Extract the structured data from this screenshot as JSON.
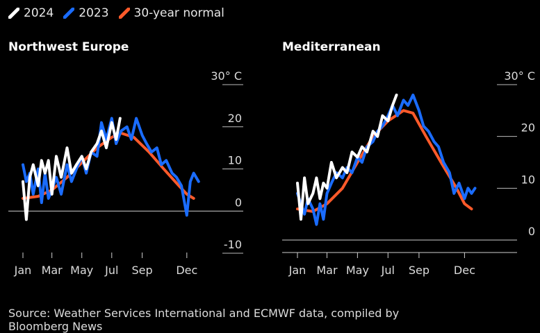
{
  "legend": [
    {
      "label": "2024",
      "color": "#ffffff",
      "icon": "white-slash-icon"
    },
    {
      "label": "2023",
      "color": "#1a6cff",
      "icon": "blue-slash-icon"
    },
    {
      "label": "30-year normal",
      "color": "#ff5a2a",
      "icon": "orange-slash-icon"
    }
  ],
  "chart_data": [
    {
      "type": "line",
      "title": "Northwest Europe",
      "xlabel": "",
      "ylabel": "",
      "x_ticks": [
        "Jan",
        "Mar",
        "May",
        "Jul",
        "Sep",
        "Dec"
      ],
      "y_ticks": [
        "30° C",
        "20",
        "10",
        "0",
        "-10"
      ],
      "ylim": [
        -10,
        30
      ],
      "xlim": [
        "Jan 1",
        "Dec 31"
      ],
      "grid": "horizontal",
      "series": [
        {
          "name": "30-year normal",
          "color": "#ff5a2a",
          "x": [
            "Jan 1",
            "Feb 1",
            "Mar 1",
            "Apr 1",
            "May 1",
            "Jun 1",
            "Jul 1",
            "Jul 20",
            "Aug 15",
            "Sep 15",
            "Oct 15",
            "Nov 15",
            "Dec 1",
            "Dec 15"
          ],
          "values": [
            3,
            3.5,
            5,
            8,
            11.5,
            15,
            17.5,
            18.5,
            17.5,
            14,
            10,
            6,
            4,
            3
          ]
        },
        {
          "name": "2023",
          "color": "#1a6cff",
          "x": [
            "Jan 1",
            "Jan 8",
            "Jan 15",
            "Jan 22",
            "Feb 1",
            "Feb 8",
            "Feb 15",
            "Feb 22",
            "Mar 1",
            "Mar 10",
            "Mar 20",
            "Apr 1",
            "Apr 10",
            "Apr 20",
            "May 1",
            "May 10",
            "May 20",
            "Jun 1",
            "Jun 10",
            "Jun 20",
            "Jul 1",
            "Jul 10",
            "Jul 20",
            "Aug 1",
            "Aug 10",
            "Aug 20",
            "Sep 1",
            "Sep 10",
            "Sep 20",
            "Oct 1",
            "Oct 10",
            "Oct 20",
            "Nov 1",
            "Nov 10",
            "Nov 20",
            "Dec 1",
            "Dec 8",
            "Dec 15",
            "Dec 25"
          ],
          "values": [
            11,
            7,
            9,
            4,
            10,
            2,
            9,
            3,
            5,
            8,
            4,
            11,
            7,
            10,
            13,
            9,
            14,
            13,
            21,
            17,
            22,
            16,
            19,
            20,
            17,
            22,
            18,
            16,
            14,
            15,
            11,
            12,
            9,
            8,
            6,
            -1,
            7,
            9,
            7
          ]
        },
        {
          "name": "2024",
          "color": "#ffffff",
          "x": [
            "Jan 1",
            "Jan 8",
            "Jan 15",
            "Jan 22",
            "Feb 1",
            "Feb 8",
            "Feb 15",
            "Feb 22",
            "Mar 1",
            "Mar 10",
            "Mar 20",
            "Apr 1",
            "Apr 10",
            "Apr 20",
            "May 1",
            "May 10",
            "May 20",
            "Jun 1",
            "Jun 10",
            "Jun 20",
            "Jul 1",
            "Jul 10",
            "Jul 18"
          ],
          "values": [
            7,
            -2,
            8,
            11,
            6,
            12,
            9,
            12,
            4,
            13,
            8,
            15,
            9,
            11,
            13,
            10,
            14,
            16,
            19,
            15,
            21,
            17,
            22
          ]
        }
      ]
    },
    {
      "type": "line",
      "title": "Mediterranean",
      "xlabel": "",
      "ylabel": "",
      "x_ticks": [
        "Jan",
        "Mar",
        "May",
        "Jul",
        "Sep",
        "Dec"
      ],
      "y_ticks": [
        "30° C",
        "20",
        "10",
        "0"
      ],
      "ylim": [
        0,
        30
      ],
      "xlim": [
        "Jan 1",
        "Dec 31"
      ],
      "grid": "horizontal",
      "series": [
        {
          "name": "30-year normal",
          "color": "#ff5a2a",
          "x": [
            "Jan 1",
            "Feb 1",
            "Mar 1",
            "Apr 1",
            "May 1",
            "Jun 1",
            "Jul 1",
            "Aug 1",
            "Aug 20",
            "Sep 15",
            "Oct 15",
            "Nov 15",
            "Dec 1",
            "Dec 15"
          ],
          "values": [
            6,
            5.5,
            7,
            10,
            15,
            20,
            23,
            25,
            24.5,
            20,
            15,
            10,
            7,
            6
          ]
        },
        {
          "name": "2023",
          "color": "#1a6cff",
          "x": [
            "Jan 1",
            "Jan 8",
            "Jan 15",
            "Jan 22",
            "Feb 1",
            "Feb 8",
            "Feb 15",
            "Feb 22",
            "Mar 1",
            "Mar 10",
            "Mar 20",
            "Apr 1",
            "Apr 10",
            "Apr 20",
            "May 1",
            "May 10",
            "May 20",
            "Jun 1",
            "Jun 10",
            "Jun 20",
            "Jul 1",
            "Jul 10",
            "Jul 20",
            "Aug 1",
            "Aug 10",
            "Aug 20",
            "Sep 1",
            "Sep 10",
            "Sep 20",
            "Oct 1",
            "Oct 10",
            "Oct 20",
            "Nov 1",
            "Nov 10",
            "Nov 20",
            "Dec 1",
            "Dec 8",
            "Dec 15",
            "Dec 22"
          ],
          "values": [
            9,
            7,
            5,
            8,
            6,
            3,
            7,
            4,
            9,
            11,
            13,
            12,
            14,
            13,
            16,
            15,
            18,
            19,
            21,
            22,
            24,
            26,
            24,
            27,
            26,
            28,
            25,
            22,
            21,
            19,
            18,
            15,
            13,
            9,
            11,
            8,
            10,
            9,
            10
          ]
        },
        {
          "name": "2024",
          "color": "#ffffff",
          "x": [
            "Jan 1",
            "Jan 8",
            "Jan 15",
            "Jan 22",
            "Feb 1",
            "Feb 8",
            "Feb 15",
            "Feb 22",
            "Mar 1",
            "Mar 10",
            "Mar 20",
            "Apr 1",
            "Apr 10",
            "Apr 20",
            "May 1",
            "May 10",
            "May 20",
            "Jun 1",
            "Jun 10",
            "Jun 20",
            "Jul 1",
            "Jul 10",
            "Jul 18"
          ],
          "values": [
            11,
            4,
            12,
            7,
            9,
            12,
            8,
            11,
            10,
            15,
            12,
            14,
            13,
            17,
            16,
            18,
            17,
            21,
            20,
            24,
            23,
            26,
            28
          ]
        }
      ]
    }
  ],
  "source": "Source: Weather Services International and ECMWF data, compiled by Bloomberg News"
}
